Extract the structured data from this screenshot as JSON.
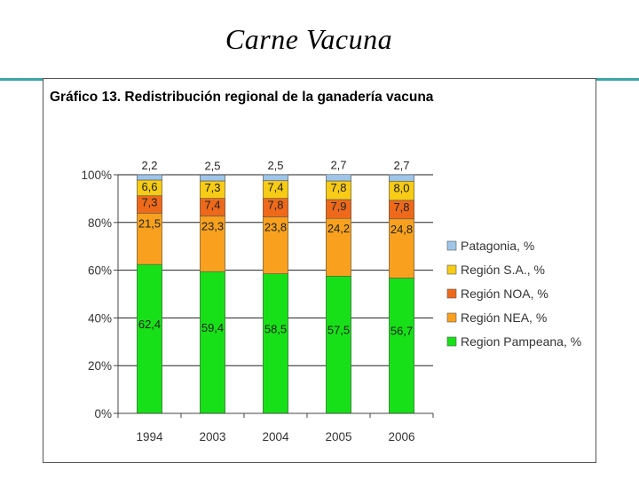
{
  "slide": {
    "title": "Carne Vacuna"
  },
  "chart_data": {
    "type": "bar",
    "stacked": true,
    "title": "Gráfico 13. Redistribución regional de la ganadería vacuna",
    "categories": [
      "1994",
      "2003",
      "2004",
      "2005",
      "2006"
    ],
    "series": [
      {
        "name": "Region Pampeana, %",
        "color": "#18e018",
        "values": [
          62.4,
          59.4,
          58.5,
          57.5,
          56.7
        ],
        "labels": [
          "62,4",
          "59,4",
          "58,5",
          "57,5",
          "56,7"
        ]
      },
      {
        "name": "Región NEA, %",
        "color": "#f9a11e",
        "values": [
          21.5,
          23.3,
          23.8,
          24.2,
          24.8
        ],
        "labels": [
          "21,5",
          "23,3",
          "23,8",
          "24,2",
          "24,8"
        ]
      },
      {
        "name": "Región NOA, %",
        "color": "#ee6a1a",
        "values": [
          7.3,
          7.4,
          7.8,
          7.9,
          7.8
        ],
        "labels": [
          "7,3",
          "7,4",
          "7,8",
          "7,9",
          "7,8"
        ]
      },
      {
        "name": "Región S.A., %",
        "color": "#f7cb16",
        "values": [
          6.6,
          7.3,
          7.4,
          7.8,
          8.0
        ],
        "labels": [
          "6,6",
          "7,3",
          "7,4",
          "7,8",
          "8,0"
        ]
      },
      {
        "name": "Patagonia, %",
        "color": "#9fc6ea",
        "values": [
          2.2,
          2.5,
          2.5,
          2.7,
          2.7
        ],
        "labels": [
          "2,2",
          "2,5",
          "2,5",
          "2,7",
          "2,7"
        ]
      }
    ],
    "yticks": [
      "0%",
      "20%",
      "40%",
      "60%",
      "80%",
      "100%"
    ],
    "ylim": [
      0,
      100
    ],
    "grid": true,
    "legend_position": "right",
    "xlabel": "",
    "ylabel": ""
  }
}
